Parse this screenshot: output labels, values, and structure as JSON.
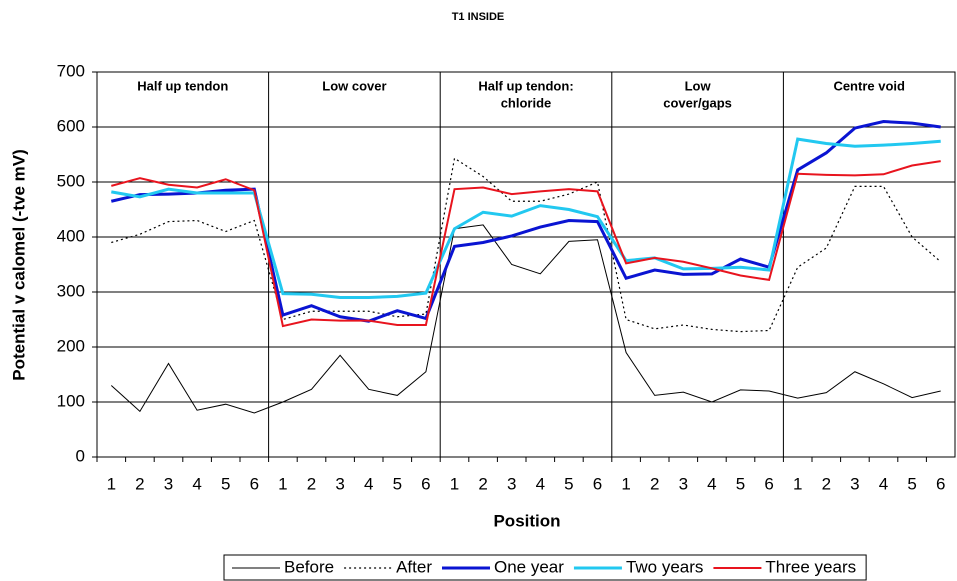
{
  "chart_data": {
    "type": "line",
    "title": "T1 INSIDE",
    "xlabel": "Position",
    "ylabel": "Potential v calomel (-tve mV)",
    "sections": [
      [
        "Half up tendon"
      ],
      [
        "Low cover"
      ],
      [
        "Half up tendon:",
        "chloride"
      ],
      [
        "Low",
        "cover/gaps"
      ],
      [
        "Centre void"
      ]
    ],
    "categories": [
      "1",
      "2",
      "3",
      "4",
      "5",
      "6",
      "1",
      "2",
      "3",
      "4",
      "5",
      "6",
      "1",
      "2",
      "3",
      "4",
      "5",
      "6",
      "1",
      "2",
      "3",
      "4",
      "5",
      "6",
      "1",
      "2",
      "3",
      "4",
      "5",
      "6"
    ],
    "ylim": [
      0,
      700
    ],
    "yticks": [
      0,
      100,
      200,
      300,
      400,
      500,
      600,
      700
    ],
    "grid": true,
    "series": [
      {
        "name": "Before",
        "color": "#000000",
        "width": 1,
        "dash": "solid",
        "values": [
          130,
          83,
          170,
          85,
          96,
          80,
          100,
          123,
          185,
          123,
          112,
          155,
          415,
          422,
          350,
          333,
          392,
          395,
          190,
          112,
          118,
          100,
          122,
          120,
          107,
          117,
          155,
          133,
          108,
          120
        ]
      },
      {
        "name": "After",
        "color": "#000000",
        "width": 1.2,
        "dash": "dotted",
        "values": [
          390,
          405,
          428,
          430,
          410,
          430,
          250,
          265,
          265,
          265,
          255,
          260,
          543,
          510,
          465,
          465,
          478,
          500,
          250,
          233,
          240,
          232,
          228,
          230,
          345,
          380,
          492,
          492,
          400,
          355
        ]
      },
      {
        "name": "One year",
        "color": "#0a14d2",
        "width": 3,
        "dash": "solid",
        "values": [
          465,
          477,
          478,
          480,
          485,
          487,
          258,
          275,
          255,
          247,
          266,
          252,
          383,
          390,
          402,
          418,
          430,
          428,
          325,
          340,
          332,
          333,
          360,
          345,
          522,
          553,
          598,
          610,
          607,
          600
        ]
      },
      {
        "name": "Two years",
        "color": "#22c8f0",
        "width": 3,
        "dash": "solid",
        "values": [
          482,
          473,
          487,
          480,
          480,
          480,
          297,
          296,
          290,
          290,
          292,
          298,
          415,
          445,
          438,
          457,
          450,
          437,
          357,
          362,
          342,
          343,
          345,
          340,
          578,
          570,
          565,
          567,
          570,
          574
        ]
      },
      {
        "name": "Three years",
        "color": "#e8141e",
        "width": 2,
        "dash": "solid",
        "values": [
          493,
          507,
          495,
          490,
          505,
          485,
          238,
          250,
          248,
          248,
          240,
          240,
          487,
          490,
          478,
          483,
          487,
          483,
          352,
          362,
          355,
          343,
          330,
          322,
          515,
          513,
          512,
          514,
          530,
          538
        ]
      }
    ]
  }
}
